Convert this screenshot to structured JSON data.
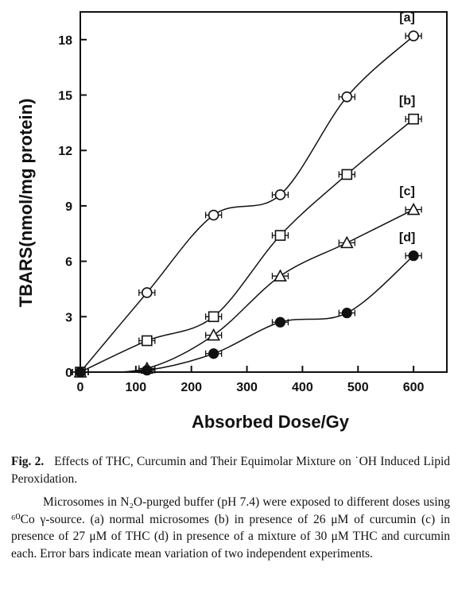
{
  "chart_data": {
    "type": "line",
    "xlabel": "Absorbed Dose/Gy",
    "ylabel": "TBARS(nmol/mg protein)",
    "xlim": [
      0,
      660
    ],
    "ylim": [
      0,
      19.5
    ],
    "xticks": [
      0,
      100,
      200,
      300,
      400,
      500,
      600
    ],
    "yticks": [
      0,
      3,
      6,
      9,
      12,
      15,
      18
    ],
    "grid": false,
    "legend": "none",
    "series": [
      {
        "name": "[a]",
        "marker": "circle-open",
        "x": [
          0,
          120,
          240,
          360,
          480,
          600
        ],
        "y": [
          0,
          4.3,
          8.5,
          9.6,
          14.9,
          18.2
        ]
      },
      {
        "name": "[b]",
        "marker": "square-open",
        "x": [
          0,
          120,
          240,
          360,
          480,
          600
        ],
        "y": [
          0,
          1.7,
          3.0,
          7.4,
          10.7,
          13.7
        ]
      },
      {
        "name": "[c]",
        "marker": "triangle-open",
        "x": [
          0,
          120,
          240,
          360,
          480,
          600
        ],
        "y": [
          0,
          0.2,
          2.0,
          5.2,
          7.0,
          8.8
        ]
      },
      {
        "name": "[d]",
        "marker": "circle-filled",
        "x": [
          0,
          120,
          240,
          360,
          480,
          600
        ],
        "y": [
          0,
          0.1,
          1.0,
          2.7,
          3.2,
          6.3
        ]
      }
    ]
  },
  "caption": {
    "label": "Fig. 2.",
    "title": "Effects of THC, Curcumin and Their Equimolar Mixture on ˙OH Induced Lipid Peroxidation.",
    "body": "Microsomes in N₂O-purged buffer (pH 7.4) were exposed to different doses using ⁶⁰Co γ-source. (a) normal microsomes (b) in presence of 26 μM of curcumin (c) in presence of 27 μM of THC (d) in presence of a mixture of 30 μM THC and curcumin each. Error bars indicate mean variation of two independent experiments."
  }
}
